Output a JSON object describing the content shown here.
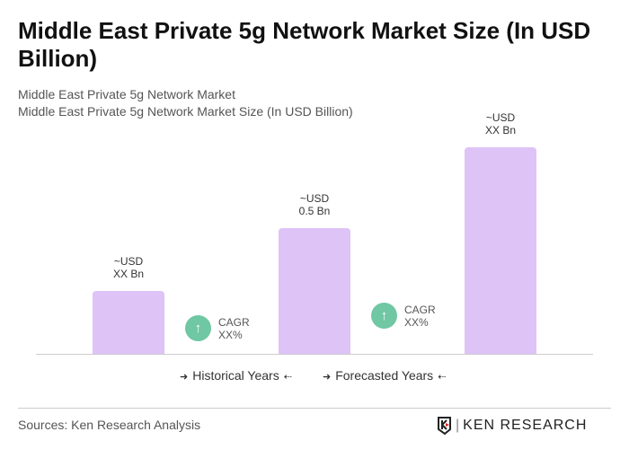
{
  "title": "Middle East Private 5g Network Market Size (In USD Billion)",
  "subtitle1": "Middle East Private 5g Network Market",
  "subtitle2": "Middle East Private 5g Network Market Size (In USD Billion)",
  "chart_data": {
    "type": "bar",
    "categories": [
      "",
      "",
      ""
    ],
    "value_labels": [
      {
        "line1": "~USD",
        "line2": "XX Bn"
      },
      {
        "line1": "~USD",
        "line2": "0.5 Bn"
      },
      {
        "line1": "~USD",
        "line2": "XX Bn"
      }
    ],
    "values": [
      null,
      0.5,
      null
    ],
    "bar_color": "#dec3f7",
    "cagr": [
      {
        "label": "CAGR",
        "value": "XX%"
      },
      {
        "label": "CAGR",
        "value": "XX%"
      }
    ],
    "cagr_color": "#6fc7a3",
    "legend": {
      "historical": "Historical Years",
      "forecasted": "Forecasted Years"
    }
  },
  "footer": {
    "sources": "Sources: Ken Research Analysis",
    "logo_text": "KEN RESEARCH"
  }
}
